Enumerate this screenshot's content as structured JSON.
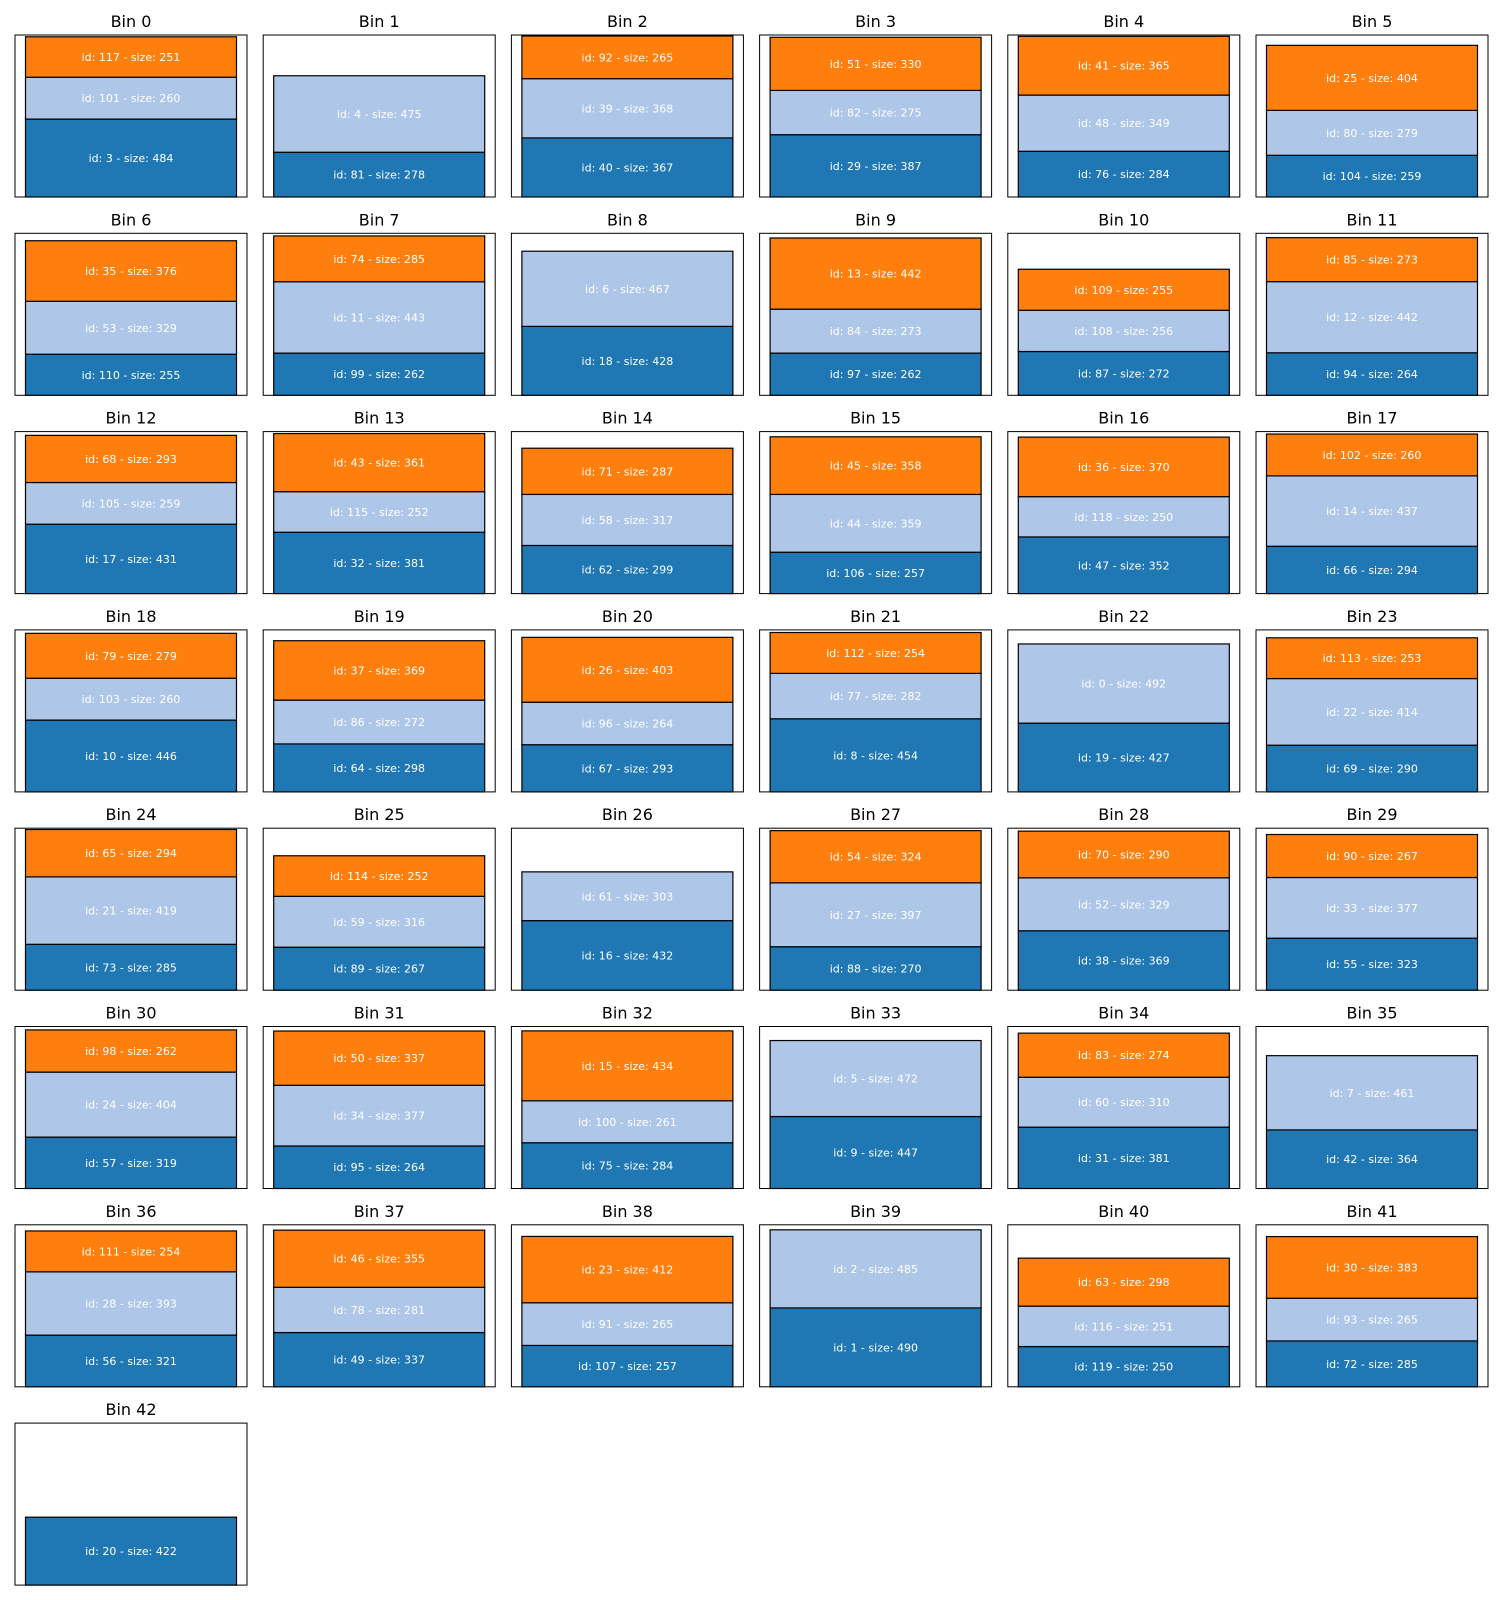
{
  "chart_data": {
    "type": "bar",
    "title": "",
    "bin_capacity": 1000,
    "colors": {
      "bottom": "#1f77b4",
      "middle": "#aec7e8",
      "top": "#ff7f0e",
      "edge": "#000000"
    },
    "label_format": "id: {id} - size: {size}",
    "bins": [
      {
        "title": "Bin 0",
        "items": [
          {
            "id": 3,
            "size": 484
          },
          {
            "id": 101,
            "size": 260
          },
          {
            "id": 117,
            "size": 251
          }
        ]
      },
      {
        "title": "Bin 1",
        "items": [
          {
            "id": 81,
            "size": 278
          },
          {
            "id": 4,
            "size": 475
          }
        ]
      },
      {
        "title": "Bin 2",
        "items": [
          {
            "id": 40,
            "size": 367
          },
          {
            "id": 39,
            "size": 368
          },
          {
            "id": 92,
            "size": 265
          }
        ]
      },
      {
        "title": "Bin 3",
        "items": [
          {
            "id": 29,
            "size": 387
          },
          {
            "id": 82,
            "size": 275
          },
          {
            "id": 51,
            "size": 330
          }
        ]
      },
      {
        "title": "Bin 4",
        "items": [
          {
            "id": 76,
            "size": 284
          },
          {
            "id": 48,
            "size": 349
          },
          {
            "id": 41,
            "size": 365
          }
        ]
      },
      {
        "title": "Bin 5",
        "items": [
          {
            "id": 104,
            "size": 259
          },
          {
            "id": 80,
            "size": 279
          },
          {
            "id": 25,
            "size": 404
          }
        ]
      },
      {
        "title": "Bin 6",
        "items": [
          {
            "id": 110,
            "size": 255
          },
          {
            "id": 53,
            "size": 329
          },
          {
            "id": 35,
            "size": 376
          }
        ]
      },
      {
        "title": "Bin 7",
        "items": [
          {
            "id": 99,
            "size": 262
          },
          {
            "id": 11,
            "size": 443
          },
          {
            "id": 74,
            "size": 285
          }
        ]
      },
      {
        "title": "Bin 8",
        "items": [
          {
            "id": 18,
            "size": 428
          },
          {
            "id": 6,
            "size": 467
          }
        ]
      },
      {
        "title": "Bin 9",
        "items": [
          {
            "id": 97,
            "size": 262
          },
          {
            "id": 84,
            "size": 273
          },
          {
            "id": 13,
            "size": 442
          }
        ]
      },
      {
        "title": "Bin 10",
        "items": [
          {
            "id": 87,
            "size": 272
          },
          {
            "id": 108,
            "size": 256
          },
          {
            "id": 109,
            "size": 255
          }
        ]
      },
      {
        "title": "Bin 11",
        "items": [
          {
            "id": 94,
            "size": 264
          },
          {
            "id": 12,
            "size": 442
          },
          {
            "id": 85,
            "size": 273
          }
        ]
      },
      {
        "title": "Bin 12",
        "items": [
          {
            "id": 17,
            "size": 431
          },
          {
            "id": 105,
            "size": 259
          },
          {
            "id": 68,
            "size": 293
          }
        ]
      },
      {
        "title": "Bin 13",
        "items": [
          {
            "id": 32,
            "size": 381
          },
          {
            "id": 115,
            "size": 252
          },
          {
            "id": 43,
            "size": 361
          }
        ]
      },
      {
        "title": "Bin 14",
        "items": [
          {
            "id": 62,
            "size": 299
          },
          {
            "id": 58,
            "size": 317
          },
          {
            "id": 71,
            "size": 287
          }
        ]
      },
      {
        "title": "Bin 15",
        "items": [
          {
            "id": 106,
            "size": 257
          },
          {
            "id": 44,
            "size": 359
          },
          {
            "id": 45,
            "size": 358
          }
        ]
      },
      {
        "title": "Bin 16",
        "items": [
          {
            "id": 47,
            "size": 352
          },
          {
            "id": 118,
            "size": 250
          },
          {
            "id": 36,
            "size": 370
          }
        ]
      },
      {
        "title": "Bin 17",
        "items": [
          {
            "id": 66,
            "size": 294
          },
          {
            "id": 14,
            "size": 437
          },
          {
            "id": 102,
            "size": 260
          }
        ]
      },
      {
        "title": "Bin 18",
        "items": [
          {
            "id": 10,
            "size": 446
          },
          {
            "id": 103,
            "size": 260
          },
          {
            "id": 79,
            "size": 279
          }
        ]
      },
      {
        "title": "Bin 19",
        "items": [
          {
            "id": 64,
            "size": 298
          },
          {
            "id": 86,
            "size": 272
          },
          {
            "id": 37,
            "size": 369
          }
        ]
      },
      {
        "title": "Bin 20",
        "items": [
          {
            "id": 67,
            "size": 293
          },
          {
            "id": 96,
            "size": 264
          },
          {
            "id": 26,
            "size": 403
          }
        ]
      },
      {
        "title": "Bin 21",
        "items": [
          {
            "id": 8,
            "size": 454
          },
          {
            "id": 77,
            "size": 282
          },
          {
            "id": 112,
            "size": 254
          }
        ]
      },
      {
        "title": "Bin 22",
        "items": [
          {
            "id": 19,
            "size": 427
          },
          {
            "id": 0,
            "size": 492
          }
        ]
      },
      {
        "title": "Bin 23",
        "items": [
          {
            "id": 69,
            "size": 290
          },
          {
            "id": 22,
            "size": 414
          },
          {
            "id": 113,
            "size": 253
          }
        ]
      },
      {
        "title": "Bin 24",
        "items": [
          {
            "id": 73,
            "size": 285
          },
          {
            "id": 21,
            "size": 419
          },
          {
            "id": 65,
            "size": 294
          }
        ]
      },
      {
        "title": "Bin 25",
        "items": [
          {
            "id": 89,
            "size": 267
          },
          {
            "id": 59,
            "size": 316
          },
          {
            "id": 114,
            "size": 252
          }
        ]
      },
      {
        "title": "Bin 26",
        "items": [
          {
            "id": 16,
            "size": 432
          },
          {
            "id": 61,
            "size": 303
          }
        ]
      },
      {
        "title": "Bin 27",
        "items": [
          {
            "id": 88,
            "size": 270
          },
          {
            "id": 27,
            "size": 397
          },
          {
            "id": 54,
            "size": 324
          }
        ]
      },
      {
        "title": "Bin 28",
        "items": [
          {
            "id": 38,
            "size": 369
          },
          {
            "id": 52,
            "size": 329
          },
          {
            "id": 70,
            "size": 290
          }
        ]
      },
      {
        "title": "Bin 29",
        "items": [
          {
            "id": 55,
            "size": 323
          },
          {
            "id": 33,
            "size": 377
          },
          {
            "id": 90,
            "size": 267
          }
        ]
      },
      {
        "title": "Bin 30",
        "items": [
          {
            "id": 57,
            "size": 319
          },
          {
            "id": 24,
            "size": 404
          },
          {
            "id": 98,
            "size": 262
          }
        ]
      },
      {
        "title": "Bin 31",
        "items": [
          {
            "id": 95,
            "size": 264
          },
          {
            "id": 34,
            "size": 377
          },
          {
            "id": 50,
            "size": 337
          }
        ]
      },
      {
        "title": "Bin 32",
        "items": [
          {
            "id": 75,
            "size": 284
          },
          {
            "id": 100,
            "size": 261
          },
          {
            "id": 15,
            "size": 434
          }
        ]
      },
      {
        "title": "Bin 33",
        "items": [
          {
            "id": 9,
            "size": 447
          },
          {
            "id": 5,
            "size": 472
          }
        ]
      },
      {
        "title": "Bin 34",
        "items": [
          {
            "id": 31,
            "size": 381
          },
          {
            "id": 60,
            "size": 310
          },
          {
            "id": 83,
            "size": 274
          }
        ]
      },
      {
        "title": "Bin 35",
        "items": [
          {
            "id": 42,
            "size": 364
          },
          {
            "id": 7,
            "size": 461
          }
        ]
      },
      {
        "title": "Bin 36",
        "items": [
          {
            "id": 56,
            "size": 321
          },
          {
            "id": 28,
            "size": 393
          },
          {
            "id": 111,
            "size": 254
          }
        ]
      },
      {
        "title": "Bin 37",
        "items": [
          {
            "id": 49,
            "size": 337
          },
          {
            "id": 78,
            "size": 281
          },
          {
            "id": 46,
            "size": 355
          }
        ]
      },
      {
        "title": "Bin 38",
        "items": [
          {
            "id": 107,
            "size": 257
          },
          {
            "id": 91,
            "size": 265
          },
          {
            "id": 23,
            "size": 412
          }
        ]
      },
      {
        "title": "Bin 39",
        "items": [
          {
            "id": 1,
            "size": 490
          },
          {
            "id": 2,
            "size": 485
          }
        ]
      },
      {
        "title": "Bin 40",
        "items": [
          {
            "id": 119,
            "size": 250
          },
          {
            "id": 116,
            "size": 251
          },
          {
            "id": 63,
            "size": 298
          }
        ]
      },
      {
        "title": "Bin 41",
        "items": [
          {
            "id": 72,
            "size": 285
          },
          {
            "id": 93,
            "size": 265
          },
          {
            "id": 30,
            "size": 383
          }
        ]
      },
      {
        "title": "Bin 42",
        "items": [
          {
            "id": 20,
            "size": 422
          }
        ]
      }
    ]
  }
}
